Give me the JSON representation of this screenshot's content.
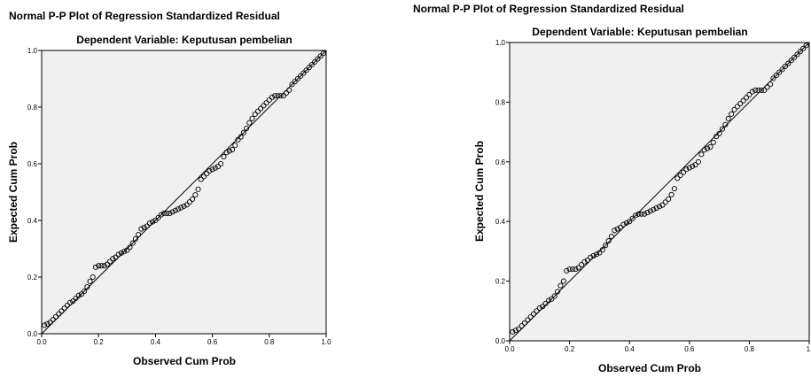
{
  "chart_data": [
    {
      "type": "scatter",
      "title": "Normal P-P Plot of Regression Standardized Residual",
      "subtitle": "Dependent Variable: Keputusan pembelian",
      "xlabel": "Observed Cum Prob",
      "ylabel": "Expected Cum Prob",
      "xlim": [
        0,
        1
      ],
      "ylim": [
        0,
        1
      ],
      "xticks": [
        "0.0",
        "0.2",
        "0.4",
        "0.6",
        "0.8",
        "1.0"
      ],
      "yticks": [
        "0.0",
        "0.2",
        "0.4",
        "0.6",
        "0.8",
        "1.0"
      ],
      "reference_line": [
        [
          0,
          0
        ],
        [
          1,
          1
        ]
      ],
      "grid": false,
      "plot_background": "#f0f0f0",
      "marker_color": "#000000",
      "x": [
        0.01,
        0.02,
        0.03,
        0.04,
        0.05,
        0.06,
        0.07,
        0.08,
        0.09,
        0.1,
        0.11,
        0.12,
        0.13,
        0.14,
        0.15,
        0.16,
        0.17,
        0.18,
        0.19,
        0.2,
        0.21,
        0.22,
        0.23,
        0.24,
        0.25,
        0.26,
        0.27,
        0.28,
        0.29,
        0.3,
        0.31,
        0.32,
        0.33,
        0.34,
        0.35,
        0.36,
        0.37,
        0.38,
        0.39,
        0.4,
        0.41,
        0.42,
        0.43,
        0.44,
        0.45,
        0.46,
        0.47,
        0.48,
        0.49,
        0.5,
        0.51,
        0.52,
        0.53,
        0.54,
        0.55,
        0.56,
        0.57,
        0.58,
        0.59,
        0.6,
        0.61,
        0.62,
        0.63,
        0.64,
        0.65,
        0.66,
        0.67,
        0.68,
        0.69,
        0.7,
        0.71,
        0.72,
        0.73,
        0.74,
        0.75,
        0.76,
        0.77,
        0.78,
        0.79,
        0.8,
        0.81,
        0.82,
        0.83,
        0.84,
        0.85,
        0.86,
        0.87,
        0.88,
        0.89,
        0.9,
        0.91,
        0.92,
        0.93,
        0.94,
        0.95,
        0.96,
        0.97,
        0.98,
        0.99
      ],
      "y": [
        0.03,
        0.035,
        0.04,
        0.05,
        0.06,
        0.07,
        0.08,
        0.09,
        0.1,
        0.11,
        0.115,
        0.125,
        0.135,
        0.14,
        0.15,
        0.165,
        0.185,
        0.2,
        0.235,
        0.24,
        0.24,
        0.24,
        0.245,
        0.255,
        0.265,
        0.27,
        0.28,
        0.285,
        0.29,
        0.295,
        0.305,
        0.32,
        0.335,
        0.35,
        0.37,
        0.375,
        0.38,
        0.39,
        0.395,
        0.4,
        0.41,
        0.42,
        0.425,
        0.425,
        0.425,
        0.43,
        0.435,
        0.44,
        0.445,
        0.45,
        0.455,
        0.465,
        0.475,
        0.49,
        0.51,
        0.545,
        0.555,
        0.565,
        0.575,
        0.58,
        0.585,
        0.59,
        0.6,
        0.625,
        0.64,
        0.645,
        0.65,
        0.665,
        0.685,
        0.695,
        0.71,
        0.725,
        0.745,
        0.76,
        0.775,
        0.785,
        0.795,
        0.805,
        0.815,
        0.825,
        0.835,
        0.84,
        0.84,
        0.84,
        0.84,
        0.85,
        0.86,
        0.88,
        0.89,
        0.9,
        0.91,
        0.92,
        0.93,
        0.94,
        0.95,
        0.96,
        0.97,
        0.98,
        0.99
      ]
    },
    {
      "type": "scatter",
      "title": "Normal P-P Plot of Regression Standardized Residual",
      "subtitle": "Dependent Variable: Keputusan pembelian",
      "xlabel": "Observed Cum Prob",
      "ylabel": "Expected Cum Prob",
      "xlim": [
        0,
        1
      ],
      "ylim": [
        0,
        1
      ],
      "xticks": [
        "0.0",
        "0.2",
        "0.4",
        "0.6",
        "0.8",
        "1."
      ],
      "yticks": [
        "0.0",
        "0.2",
        "0.4",
        "0.6",
        "0.8",
        "1.0"
      ],
      "reference_line": [
        [
          0,
          0
        ],
        [
          1,
          1
        ]
      ],
      "grid": false,
      "plot_background": "#f0f0f0",
      "marker_color": "#000000",
      "x": [
        0.01,
        0.02,
        0.03,
        0.04,
        0.05,
        0.06,
        0.07,
        0.08,
        0.09,
        0.1,
        0.11,
        0.12,
        0.13,
        0.14,
        0.15,
        0.16,
        0.17,
        0.18,
        0.19,
        0.2,
        0.21,
        0.22,
        0.23,
        0.24,
        0.25,
        0.26,
        0.27,
        0.28,
        0.29,
        0.3,
        0.31,
        0.32,
        0.33,
        0.34,
        0.35,
        0.36,
        0.37,
        0.38,
        0.39,
        0.4,
        0.41,
        0.42,
        0.43,
        0.44,
        0.45,
        0.46,
        0.47,
        0.48,
        0.49,
        0.5,
        0.51,
        0.52,
        0.53,
        0.54,
        0.55,
        0.56,
        0.57,
        0.58,
        0.59,
        0.6,
        0.61,
        0.62,
        0.63,
        0.64,
        0.65,
        0.66,
        0.67,
        0.68,
        0.69,
        0.7,
        0.71,
        0.72,
        0.73,
        0.74,
        0.75,
        0.76,
        0.77,
        0.78,
        0.79,
        0.8,
        0.81,
        0.82,
        0.83,
        0.84,
        0.85,
        0.86,
        0.87,
        0.88,
        0.89,
        0.9,
        0.91,
        0.92,
        0.93,
        0.94,
        0.95,
        0.96,
        0.97,
        0.98,
        0.99
      ],
      "y": [
        0.03,
        0.035,
        0.04,
        0.05,
        0.06,
        0.07,
        0.08,
        0.09,
        0.1,
        0.11,
        0.115,
        0.125,
        0.135,
        0.14,
        0.15,
        0.165,
        0.185,
        0.2,
        0.235,
        0.24,
        0.24,
        0.24,
        0.245,
        0.255,
        0.265,
        0.27,
        0.28,
        0.285,
        0.29,
        0.295,
        0.305,
        0.32,
        0.335,
        0.35,
        0.37,
        0.375,
        0.38,
        0.39,
        0.395,
        0.4,
        0.41,
        0.42,
        0.425,
        0.425,
        0.425,
        0.43,
        0.435,
        0.44,
        0.445,
        0.45,
        0.455,
        0.465,
        0.475,
        0.49,
        0.51,
        0.545,
        0.555,
        0.565,
        0.575,
        0.58,
        0.585,
        0.59,
        0.6,
        0.625,
        0.64,
        0.645,
        0.65,
        0.665,
        0.685,
        0.695,
        0.71,
        0.725,
        0.745,
        0.76,
        0.775,
        0.785,
        0.795,
        0.805,
        0.815,
        0.825,
        0.835,
        0.84,
        0.84,
        0.84,
        0.84,
        0.85,
        0.86,
        0.88,
        0.89,
        0.9,
        0.91,
        0.92,
        0.93,
        0.94,
        0.95,
        0.96,
        0.97,
        0.98,
        0.99
      ]
    }
  ]
}
